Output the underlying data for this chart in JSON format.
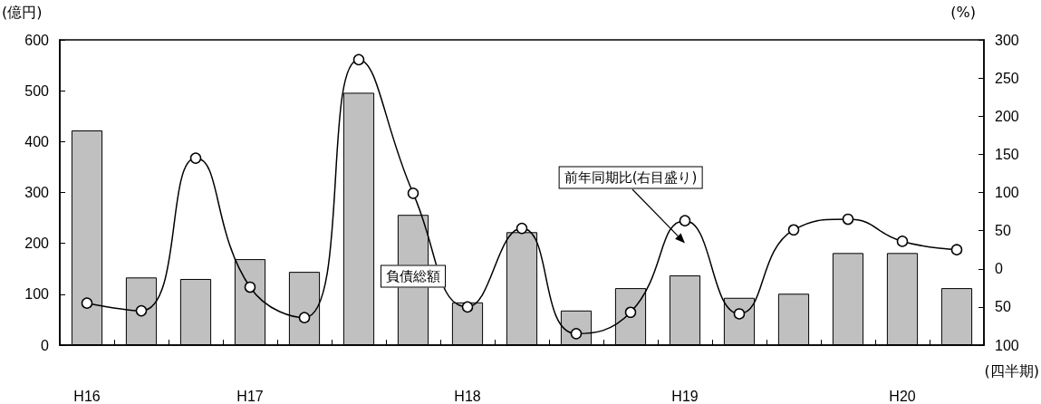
{
  "chart_data": {
    "type": "bar",
    "ylabel": "(億円)",
    "y2label": "(%)",
    "xlabel": "(四半期)",
    "categories": [
      "H16",
      null,
      null,
      "H17",
      null,
      null,
      null,
      "H18",
      null,
      null,
      null,
      "H19",
      null,
      null,
      null,
      "H20",
      null
    ],
    "series": [
      {
        "name": "負債総額",
        "color": "#c0c0c0",
        "values": [
          422,
          133,
          130,
          169,
          144,
          496,
          256,
          84,
          222,
          68,
          112,
          137,
          93,
          101,
          181,
          181,
          112
        ]
      },
      {
        "name": "前年同期比(右目盛り)",
        "type": "line",
        "axis": "y2",
        "color": "#000000",
        "values": [
          -45,
          -55,
          145,
          -24,
          -64,
          274,
          99,
          -50,
          53,
          -85,
          -57,
          63,
          -59,
          51,
          65,
          36,
          25
        ]
      }
    ],
    "ylim": [
      0,
      600
    ],
    "yticks": [
      0,
      100,
      200,
      300,
      400,
      500,
      600
    ],
    "y2lim": [
      -100,
      300
    ],
    "y2ticks": [
      {
        "value": -100,
        "label": "100"
      },
      {
        "value": -50,
        "label": "50"
      },
      0,
      50,
      100,
      150,
      200,
      250,
      300
    ],
    "grid": false,
    "legend": false,
    "marker": "circle",
    "line_style": "solid"
  }
}
